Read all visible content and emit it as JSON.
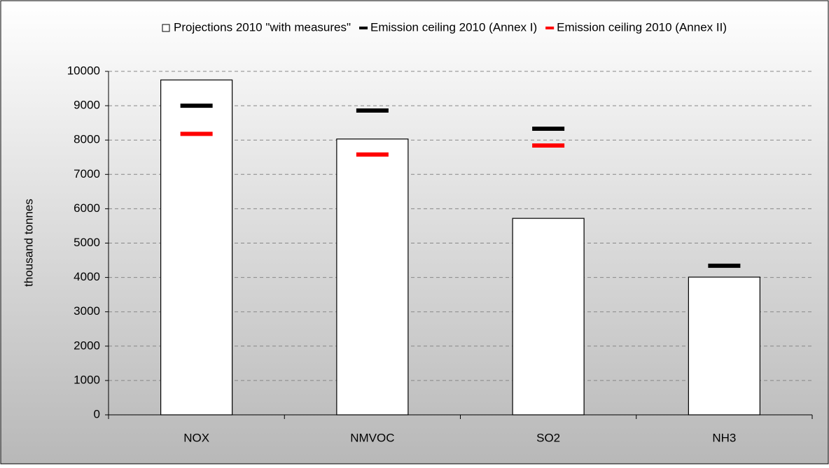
{
  "chart_data": {
    "type": "bar",
    "y_label": "thousand tonnes",
    "categories": [
      "NOX",
      "NMVOC",
      "SO2",
      "NH3"
    ],
    "series": [
      {
        "name": "Projections 2010 \"with measures\"",
        "kind": "bar",
        "color": "#ffffff",
        "values": [
          9750,
          8030,
          5720,
          4010
        ]
      },
      {
        "name": "Emission ceiling 2010 (Annex I)",
        "kind": "marker",
        "color": "#000000",
        "values": [
          9000,
          8860,
          8330,
          4340
        ]
      },
      {
        "name": "Emission ceiling 2010 (Annex II)",
        "kind": "marker",
        "color": "#ff0000",
        "values": [
          8180,
          7580,
          7840,
          null
        ]
      }
    ],
    "ylim": [
      0,
      10000
    ],
    "yticks": [
      0,
      1000,
      2000,
      3000,
      4000,
      5000,
      6000,
      7000,
      8000,
      9000,
      10000
    ],
    "grid": true,
    "legend": "top"
  }
}
